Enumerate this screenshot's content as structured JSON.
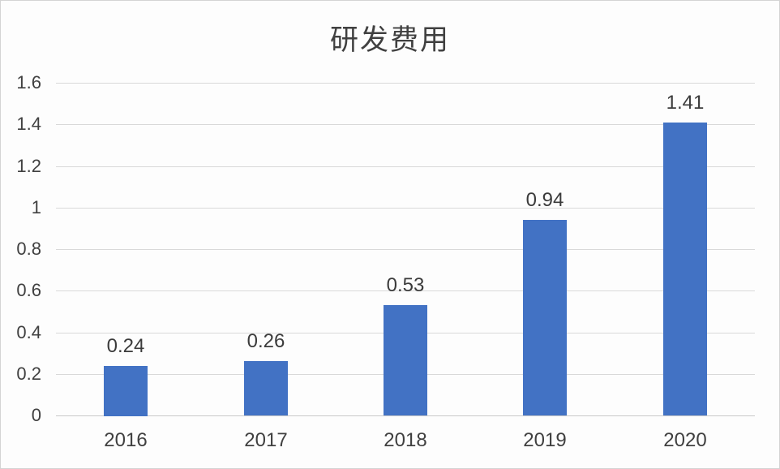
{
  "chart_data": {
    "type": "bar",
    "title": "研发费用",
    "categories": [
      "2016",
      "2017",
      "2018",
      "2019",
      "2020"
    ],
    "values": [
      0.24,
      0.26,
      0.53,
      0.94,
      1.41
    ],
    "data_labels": [
      "0.24",
      "0.26",
      "0.53",
      "0.94",
      "1.41"
    ],
    "xlabel": "",
    "ylabel": "",
    "ylim": [
      0,
      1.6
    ],
    "ytick_labels": [
      "0",
      "0.2",
      "0.4",
      "0.6",
      "0.8",
      "1",
      "1.2",
      "1.4",
      "1.6"
    ],
    "grid": "horizontal",
    "legend": "none",
    "colors": {
      "bar": "#4272c4",
      "gridline": "#d9d9d9",
      "axis_line": "#c9c9c9",
      "text": "#404040",
      "background": "#fdfdfd",
      "frame_border": "#d4d4d4"
    }
  }
}
